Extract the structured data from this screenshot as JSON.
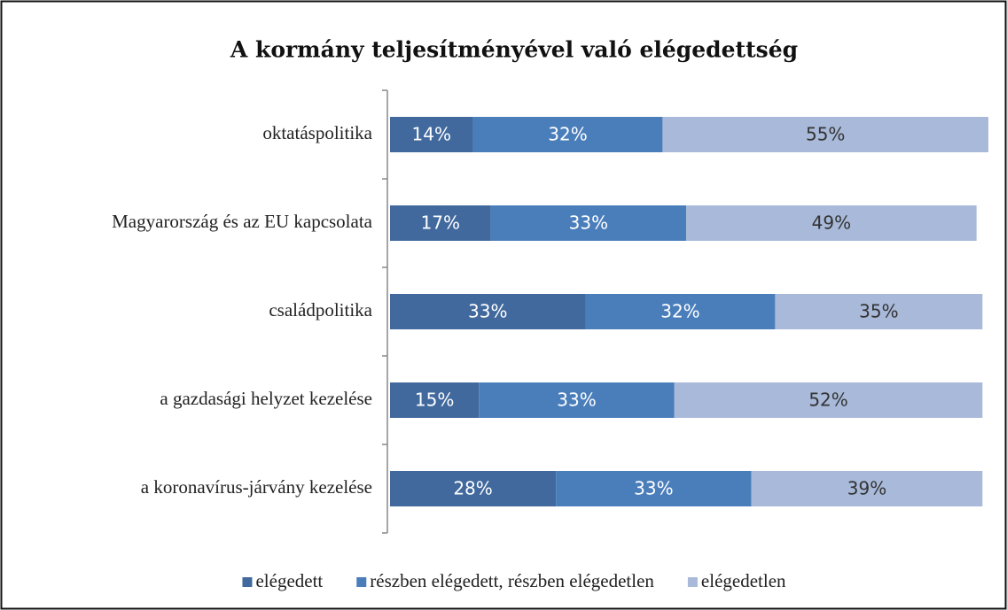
{
  "chart_data": {
    "type": "stacked-barh",
    "title": "A kormány teljesítményével való elégedettség",
    "categories": [
      "oktatáspolitika",
      "Magyarország és az EU kapcsolata",
      "családpolitika",
      "a gazdasági helyzet kezelése",
      "a koronavírus-járvány kezelése"
    ],
    "series": [
      {
        "name": "elégedett",
        "color": "#41699d",
        "label_color": "#ffffff",
        "values": [
          14,
          17,
          33,
          15,
          28
        ],
        "value_labels": [
          "14%",
          "17%",
          "33%",
          "15%",
          "28%"
        ]
      },
      {
        "name": "részben elégedett, részben elégedetlen",
        "color": "#4a7ebb",
        "label_color": "#ffffff",
        "values": [
          32,
          33,
          32,
          33,
          33
        ],
        "value_labels": [
          "32%",
          "33%",
          "32%",
          "33%",
          "33%"
        ]
      },
      {
        "name": "elégedetlen",
        "color": "#a8b9d9",
        "label_color": "#333333",
        "values": [
          55,
          49,
          35,
          52,
          39
        ],
        "value_labels": [
          "55%",
          "49%",
          "35%",
          "52%",
          "39%"
        ]
      }
    ],
    "xlim": [
      0,
      101
    ],
    "legend": "bottom"
  }
}
